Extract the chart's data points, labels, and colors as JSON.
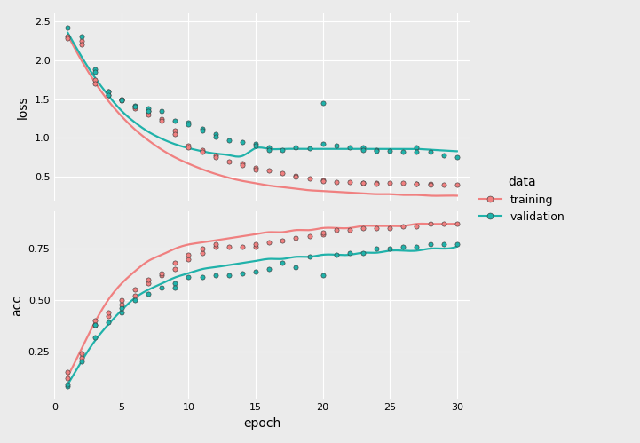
{
  "title": "",
  "xlabel": "epoch",
  "ylabel_top": "loss",
  "ylabel_bottom": "acc",
  "legend_title": "data",
  "legend_entries": [
    "training",
    "validation"
  ],
  "color_training": "#F08080",
  "color_validation": "#20B2AA",
  "background_color": "#EBEBEB",
  "grid_color": "#FFFFFF",
  "loss_train_scatter_x": [
    1,
    1,
    2,
    2,
    3,
    3,
    4,
    4,
    5,
    5,
    6,
    6,
    7,
    7,
    8,
    8,
    9,
    9,
    10,
    10,
    11,
    11,
    12,
    12,
    13,
    14,
    14,
    15,
    15,
    16,
    17,
    18,
    18,
    19,
    20,
    20,
    21,
    22,
    23,
    23,
    24,
    24,
    25,
    26,
    27,
    27,
    28,
    28,
    29,
    30
  ],
  "loss_train_scatter_y": [
    2.3,
    2.28,
    2.25,
    2.2,
    1.75,
    1.7,
    1.6,
    1.55,
    1.5,
    1.48,
    1.4,
    1.38,
    1.35,
    1.3,
    1.25,
    1.22,
    1.1,
    1.05,
    0.9,
    0.88,
    0.85,
    0.82,
    0.78,
    0.75,
    0.7,
    0.68,
    0.65,
    0.62,
    0.6,
    0.58,
    0.55,
    0.52,
    0.5,
    0.48,
    0.46,
    0.45,
    0.44,
    0.44,
    0.43,
    0.42,
    0.42,
    0.41,
    0.42,
    0.42,
    0.41,
    0.41,
    0.41,
    0.4,
    0.4,
    0.4
  ],
  "loss_val_scatter_x": [
    1,
    2,
    3,
    3,
    4,
    4,
    5,
    5,
    6,
    6,
    7,
    7,
    8,
    9,
    10,
    10,
    11,
    11,
    12,
    12,
    13,
    14,
    15,
    15,
    16,
    16,
    17,
    18,
    19,
    20,
    20,
    21,
    22,
    23,
    23,
    24,
    24,
    25,
    26,
    27,
    27,
    28,
    29,
    30
  ],
  "loss_val_scatter_y": [
    2.42,
    2.3,
    1.88,
    1.85,
    1.6,
    1.55,
    1.5,
    1.48,
    1.42,
    1.4,
    1.38,
    1.35,
    1.35,
    1.22,
    1.2,
    1.18,
    1.12,
    1.1,
    1.05,
    1.02,
    0.97,
    0.95,
    0.92,
    0.9,
    0.88,
    0.85,
    0.85,
    0.88,
    0.87,
    1.45,
    0.92,
    0.9,
    0.88,
    0.88,
    0.85,
    0.85,
    0.83,
    0.83,
    0.82,
    0.88,
    0.82,
    0.82,
    0.78,
    0.76
  ],
  "acc_train_scatter_x": [
    1,
    1,
    2,
    2,
    3,
    3,
    4,
    4,
    5,
    5,
    6,
    6,
    7,
    7,
    8,
    8,
    9,
    9,
    10,
    10,
    11,
    11,
    12,
    12,
    13,
    14,
    15,
    15,
    16,
    17,
    18,
    19,
    20,
    20,
    21,
    22,
    23,
    24,
    25,
    26,
    27,
    28,
    29,
    30
  ],
  "acc_train_scatter_y": [
    0.12,
    0.15,
    0.22,
    0.24,
    0.38,
    0.4,
    0.42,
    0.44,
    0.48,
    0.5,
    0.52,
    0.55,
    0.58,
    0.6,
    0.62,
    0.63,
    0.65,
    0.68,
    0.7,
    0.72,
    0.73,
    0.75,
    0.76,
    0.77,
    0.76,
    0.76,
    0.76,
    0.77,
    0.78,
    0.79,
    0.8,
    0.81,
    0.82,
    0.83,
    0.84,
    0.84,
    0.85,
    0.85,
    0.85,
    0.86,
    0.86,
    0.87,
    0.87,
    0.87
  ],
  "acc_val_scatter_x": [
    1,
    1,
    2,
    3,
    3,
    4,
    5,
    5,
    6,
    7,
    8,
    9,
    9,
    10,
    11,
    12,
    13,
    14,
    15,
    16,
    17,
    18,
    19,
    20,
    21,
    22,
    23,
    24,
    25,
    26,
    27,
    28,
    29,
    30
  ],
  "acc_val_scatter_y": [
    0.08,
    0.09,
    0.2,
    0.32,
    0.38,
    0.39,
    0.44,
    0.46,
    0.5,
    0.53,
    0.56,
    0.58,
    0.56,
    0.61,
    0.61,
    0.62,
    0.62,
    0.63,
    0.64,
    0.65,
    0.68,
    0.66,
    0.71,
    0.62,
    0.72,
    0.73,
    0.73,
    0.75,
    0.75,
    0.76,
    0.76,
    0.77,
    0.77,
    0.77
  ],
  "loss_train_curve_x": [
    1,
    2,
    3,
    4,
    5,
    6,
    7,
    8,
    9,
    10,
    11,
    12,
    13,
    14,
    15,
    16,
    17,
    18,
    19,
    20,
    21,
    22,
    23,
    24,
    25,
    26,
    27,
    28,
    29,
    30
  ],
  "loss_train_curve_y": [
    2.32,
    2.0,
    1.72,
    1.48,
    1.28,
    1.11,
    0.97,
    0.85,
    0.75,
    0.67,
    0.6,
    0.54,
    0.49,
    0.45,
    0.42,
    0.39,
    0.37,
    0.35,
    0.33,
    0.32,
    0.31,
    0.3,
    0.29,
    0.28,
    0.28,
    0.27,
    0.27,
    0.26,
    0.26,
    0.26
  ],
  "loss_val_curve_x": [
    1,
    2,
    3,
    4,
    5,
    6,
    7,
    8,
    9,
    10,
    11,
    12,
    13,
    14,
    15,
    16,
    17,
    18,
    19,
    20,
    21,
    22,
    23,
    24,
    25,
    26,
    27,
    28,
    29,
    30
  ],
  "loss_val_curve_y": [
    2.35,
    2.05,
    1.78,
    1.55,
    1.35,
    1.2,
    1.08,
    0.99,
    0.92,
    0.87,
    0.83,
    0.8,
    0.78,
    0.77,
    0.87,
    0.86,
    0.86,
    0.86,
    0.86,
    0.86,
    0.86,
    0.86,
    0.86,
    0.86,
    0.86,
    0.86,
    0.86,
    0.85,
    0.84,
    0.83
  ],
  "acc_train_curve_x": [
    1,
    2,
    3,
    4,
    5,
    6,
    7,
    8,
    9,
    10,
    11,
    12,
    13,
    14,
    15,
    16,
    17,
    18,
    19,
    20,
    21,
    22,
    23,
    24,
    25,
    26,
    27,
    28,
    29,
    30
  ],
  "acc_train_curve_y": [
    0.13,
    0.26,
    0.39,
    0.5,
    0.58,
    0.64,
    0.69,
    0.72,
    0.75,
    0.77,
    0.78,
    0.79,
    0.8,
    0.81,
    0.82,
    0.83,
    0.83,
    0.84,
    0.84,
    0.85,
    0.85,
    0.85,
    0.86,
    0.86,
    0.86,
    0.86,
    0.87,
    0.87,
    0.87,
    0.87
  ],
  "acc_val_curve_x": [
    1,
    2,
    3,
    4,
    5,
    6,
    7,
    8,
    9,
    10,
    11,
    12,
    13,
    14,
    15,
    16,
    17,
    18,
    19,
    20,
    21,
    22,
    23,
    24,
    25,
    26,
    27,
    28,
    29,
    30
  ],
  "acc_val_curve_y": [
    0.09,
    0.2,
    0.3,
    0.38,
    0.45,
    0.51,
    0.55,
    0.58,
    0.61,
    0.63,
    0.65,
    0.66,
    0.67,
    0.68,
    0.69,
    0.7,
    0.7,
    0.71,
    0.71,
    0.72,
    0.72,
    0.72,
    0.73,
    0.73,
    0.74,
    0.74,
    0.74,
    0.75,
    0.75,
    0.76
  ]
}
